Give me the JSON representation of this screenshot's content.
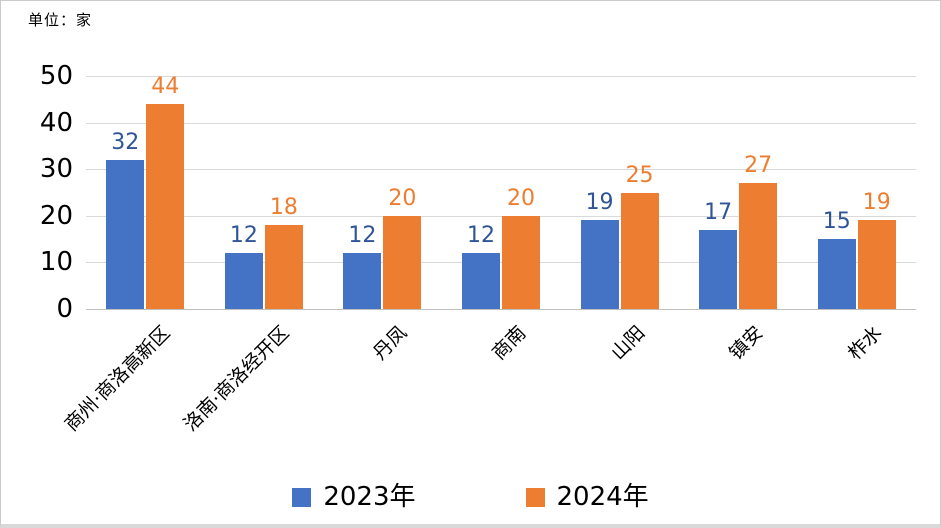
{
  "unit_label": "单位：家",
  "chart_data": {
    "type": "bar",
    "title": "",
    "unit": "单位：家",
    "categories": [
      "商州·商洛高新区",
      "洛南·商洛经开区",
      "丹凤",
      "商南",
      "山阳",
      "镇安",
      "柞水"
    ],
    "series": [
      {
        "name": "2023年",
        "color": "#4472C4",
        "label_color": "#2F5597",
        "values": [
          32,
          12,
          12,
          12,
          19,
          17,
          15
        ]
      },
      {
        "name": "2024年",
        "color": "#ED7D31",
        "label_color": "#ED7D31",
        "values": [
          44,
          18,
          20,
          20,
          25,
          27,
          19
        ]
      }
    ],
    "ylim": [
      0,
      50
    ],
    "yticks": [
      0,
      10,
      20,
      30,
      40,
      50
    ],
    "grid": true,
    "xlabel": "",
    "ylabel": "",
    "legend_position": "bottom",
    "gridline_color": "#D9D9D9",
    "axis_line_color": "#BFBFBF"
  }
}
